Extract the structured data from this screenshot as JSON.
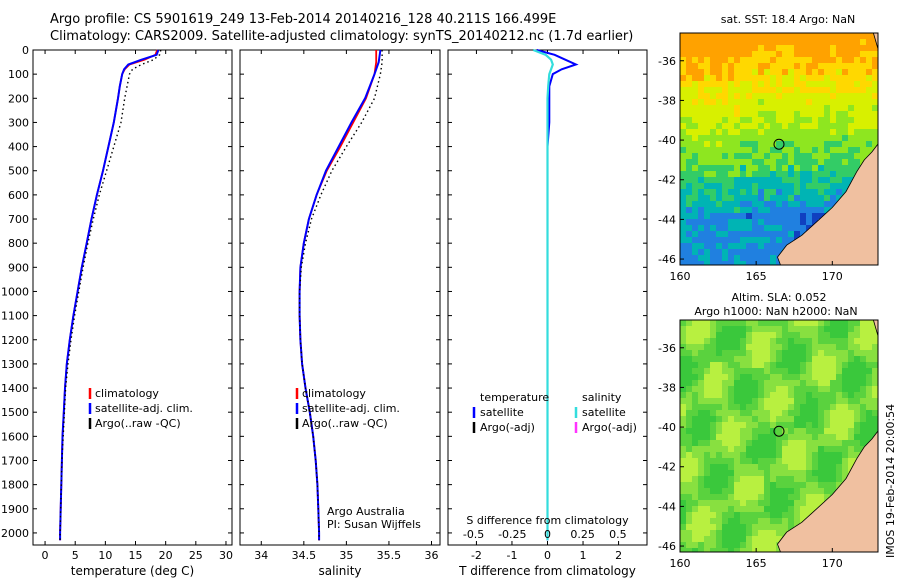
{
  "header": {
    "line1": "Argo profile: CS 5901619_249 13-Feb-2014 20140216_128 40.211S 166.499E",
    "line2": "Climatology: CARS2009. Satellite-adjusted climatology: synTS_20140212.nc (1.7d earlier)"
  },
  "stamp": "IMOS 19-Feb-2014 20:00:54",
  "colors": {
    "climatology": "#ff0000",
    "satellite": "#0000ff",
    "argo": "#000000",
    "salinity_satellite": "#33dddd",
    "salinity_argo": "#ff33ff",
    "land": "#f0c0a0"
  },
  "depth_ticks": [
    "0",
    "100",
    "200",
    "300",
    "400",
    "500",
    "600",
    "700",
    "800",
    "900",
    "1000",
    "1100",
    "1200",
    "1300",
    "1400",
    "1500",
    "1600",
    "1700",
    "1800",
    "1900",
    "2000"
  ],
  "chart_data": [
    {
      "type": "line",
      "id": "temperature",
      "xlabel": "temperature (deg C)",
      "xlim": [
        -2,
        31
      ],
      "ylim": [
        0,
        2050
      ],
      "xticks": [
        "0",
        "5",
        "10",
        "15",
        "20",
        "25",
        "30"
      ],
      "xtick_values": [
        0,
        5,
        10,
        15,
        20,
        25,
        30
      ],
      "legend": [
        "climatology",
        "satellite-adj. clim.",
        "Argo(..raw -QC)"
      ],
      "depth": [
        0,
        20,
        40,
        60,
        80,
        100,
        150,
        200,
        300,
        400,
        500,
        600,
        700,
        800,
        900,
        1000,
        1100,
        1200,
        1300,
        1400,
        1500,
        1600,
        1700,
        1800,
        1900,
        2000,
        2030
      ],
      "series": [
        {
          "name": "climatology",
          "values": [
            18.6,
            18.3,
            16.5,
            14.0,
            13.2,
            12.8,
            12.4,
            12.1,
            11.4,
            10.5,
            9.6,
            8.6,
            7.7,
            6.9,
            6.1,
            5.4,
            4.7,
            4.1,
            3.6,
            3.3,
            3.1,
            2.9,
            2.8,
            2.7,
            2.6,
            2.5,
            2.5
          ]
        },
        {
          "name": "satellite-adj. clim.",
          "values": [
            18.8,
            18.5,
            16.0,
            13.8,
            13.1,
            12.8,
            12.4,
            12.1,
            11.4,
            10.5,
            9.6,
            8.6,
            7.7,
            6.9,
            6.1,
            5.4,
            4.7,
            4.1,
            3.6,
            3.3,
            3.1,
            2.9,
            2.8,
            2.7,
            2.6,
            2.5,
            2.5
          ]
        },
        {
          "name": "Argo(..raw -QC)",
          "values": [
            19.2,
            19.0,
            18.0,
            16.0,
            14.5,
            14.0,
            13.6,
            13.2,
            12.6,
            11.4,
            10.2,
            9.0,
            8.0,
            7.1,
            6.3,
            5.6,
            4.9,
            4.3,
            3.8,
            3.4,
            3.2,
            3.0,
            2.8,
            2.7,
            2.6,
            2.5,
            2.5
          ]
        }
      ]
    },
    {
      "type": "line",
      "id": "salinity",
      "xlabel": "salinity",
      "xlim": [
        33.75,
        36.1
      ],
      "ylim": [
        0,
        2050
      ],
      "xticks": [
        "34",
        "34.5",
        "35",
        "35.5",
        "36"
      ],
      "xtick_values": [
        34,
        34.5,
        35,
        35.5,
        36
      ],
      "legend": [
        "climatology",
        "satellite-adj. clim.",
        "Argo(..raw -QC)"
      ],
      "annotation": [
        "Argo Australia",
        "PI: Susan Wijffels"
      ],
      "depth": [
        0,
        50,
        100,
        200,
        300,
        400,
        500,
        600,
        700,
        800,
        900,
        1000,
        1100,
        1200,
        1300,
        1400,
        1500,
        1600,
        1700,
        1800,
        1900,
        2000,
        2030
      ],
      "series": [
        {
          "name": "climatology",
          "values": [
            35.35,
            35.35,
            35.33,
            35.23,
            35.08,
            34.93,
            34.77,
            34.65,
            34.56,
            34.5,
            34.46,
            34.45,
            34.45,
            34.46,
            34.48,
            34.52,
            34.57,
            34.61,
            34.64,
            34.66,
            34.67,
            34.68,
            34.68
          ]
        },
        {
          "name": "satellite-adj. clim.",
          "values": [
            35.4,
            35.38,
            35.33,
            35.22,
            35.06,
            34.91,
            34.76,
            34.65,
            34.56,
            34.5,
            34.46,
            34.45,
            34.45,
            34.46,
            34.48,
            34.52,
            34.57,
            34.61,
            34.64,
            34.66,
            34.67,
            34.68,
            34.68
          ]
        },
        {
          "name": "Argo(..raw -QC)",
          "values": [
            35.42,
            35.42,
            35.4,
            35.33,
            35.18,
            35.0,
            34.83,
            34.7,
            34.59,
            34.52,
            34.47,
            34.45,
            34.45,
            34.46,
            34.48,
            34.52,
            34.57,
            34.61,
            34.64,
            34.66,
            34.67,
            34.68,
            34.68
          ]
        }
      ]
    },
    {
      "type": "line",
      "id": "difference",
      "xlabel": "T difference from climatology",
      "xlabel_top": "S difference from climatology",
      "xlim": [
        -2.8,
        2.8
      ],
      "ylim": [
        0,
        2050
      ],
      "xticks": [
        "-2",
        "-1",
        "0",
        "1",
        "2"
      ],
      "xtick_values": [
        -2,
        -1,
        0,
        1,
        2
      ],
      "s_ticks": [
        "-0.5",
        "-0.25",
        "0",
        "0.25",
        "0.5"
      ],
      "legend_temperature_title": "temperature",
      "legend_salinity_title": "salinity",
      "legend_temperature": [
        "satellite",
        "Argo(-adj)"
      ],
      "legend_salinity": [
        "satellite",
        "Argo(-adj)"
      ],
      "depth": [
        0,
        20,
        40,
        60,
        80,
        100,
        150,
        200,
        300,
        400,
        600,
        800,
        1000,
        1500,
        2030
      ],
      "series": [
        {
          "name": "temperature satellite",
          "values": [
            -0.3,
            0.2,
            0.5,
            0.8,
            0.4,
            0.15,
            0.05,
            0.05,
            0.05,
            0.0,
            0.0,
            0.0,
            0.0,
            0.0,
            0.0
          ]
        },
        {
          "name": "salinity satellite",
          "values": [
            -0.4,
            -0.05,
            0.1,
            0.15,
            0.1,
            0.05,
            0.02,
            0.0,
            0.0,
            0.0,
            0.0,
            0.0,
            0.0,
            0.0,
            0.0
          ]
        }
      ]
    },
    {
      "type": "heatmap",
      "id": "sst-map",
      "title": "sat. SST: 18.4 Argo: NaN",
      "xticks": [
        "160",
        "165",
        "170"
      ],
      "xtick_values": [
        160,
        165,
        170
      ],
      "yticks": [
        "-36",
        "-38",
        "-40",
        "-42",
        "-44",
        "-46"
      ],
      "ytick_values": [
        -36,
        -38,
        -40,
        -42,
        -44,
        -46
      ],
      "xlim": [
        160,
        173
      ],
      "ylim": [
        -46.3,
        -34.6
      ],
      "float_position": [
        166.5,
        -40.21
      ]
    },
    {
      "type": "heatmap",
      "id": "sla-map",
      "title_line1": "Altim. SLA: 0.052",
      "title_line2": "Argo h1000: NaN h2000: NaN",
      "xticks": [
        "160",
        "165",
        "170"
      ],
      "xtick_values": [
        160,
        165,
        170
      ],
      "yticks": [
        "-36",
        "-38",
        "-40",
        "-42",
        "-44",
        "-46"
      ],
      "ytick_values": [
        -36,
        -38,
        -40,
        -42,
        -44,
        -46
      ],
      "xlim": [
        160,
        173
      ],
      "ylim": [
        -46.3,
        -34.6
      ],
      "float_position": [
        166.5,
        -40.21
      ]
    }
  ]
}
